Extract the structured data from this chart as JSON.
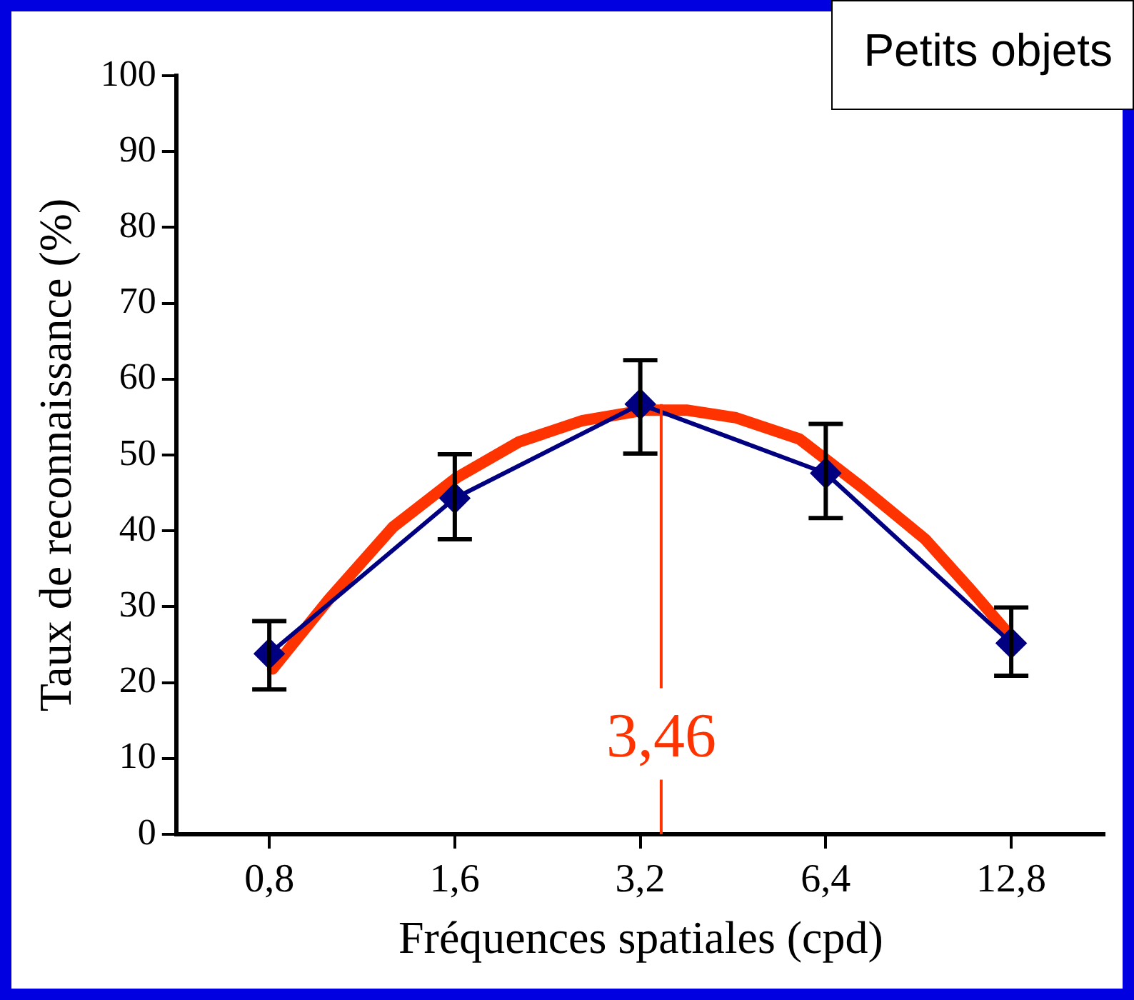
{
  "chart_data": {
    "type": "line",
    "xlabel": "Fréquences spatiales (cpd)",
    "ylabel": "Taux de reconnaissance (%)",
    "annotations": [
      "Petits objets"
    ],
    "log": "x",
    "xlim": [
      0.565,
      18.2
    ],
    "xticks": [
      {
        "value": 0.8,
        "label": "0,8"
      },
      {
        "value": 1.6,
        "label": "1,6"
      },
      {
        "value": 3.2,
        "label": "3,2"
      },
      {
        "value": 6.4,
        "label": "6,4"
      },
      {
        "value": 12.8,
        "label": "12,8"
      }
    ],
    "ylim": [
      0,
      100
    ],
    "yticks": [
      0,
      10,
      20,
      30,
      40,
      50,
      60,
      70,
      80,
      90,
      100
    ],
    "grid": false,
    "legend": false,
    "series": [
      {
        "color": "#000080",
        "marker": "diamond",
        "x": [
          0.8,
          1.6,
          3.2,
          6.4,
          12.8
        ],
        "values": [
          23.8,
          44.3,
          56.7,
          47.6,
          25.2
        ],
        "errors": [
          [
            19.1,
            28.1
          ],
          [
            38.9,
            50.1
          ],
          [
            50.2,
            62.5
          ],
          [
            41.7,
            54.1
          ],
          [
            20.9,
            29.9
          ]
        ]
      },
      {
        "color": "#ff3300",
        "marker": "none",
        "x": [
          0.81,
          1.0,
          1.27,
          1.61,
          2.03,
          2.57,
          3.24,
          3.82,
          4.58,
          5.8,
          7.34,
          9.28,
          10.9,
          12.9
        ],
        "values": [
          21.8,
          31.0,
          40.5,
          47.0,
          51.7,
          54.5,
          55.9,
          55.9,
          54.9,
          52.1,
          45.7,
          38.9,
          32.6,
          25.7
        ]
      }
    ],
    "ref_lines": [
      {
        "axis": "x",
        "value": 3.46,
        "label": "3,46",
        "color": "#ff3300"
      }
    ]
  }
}
